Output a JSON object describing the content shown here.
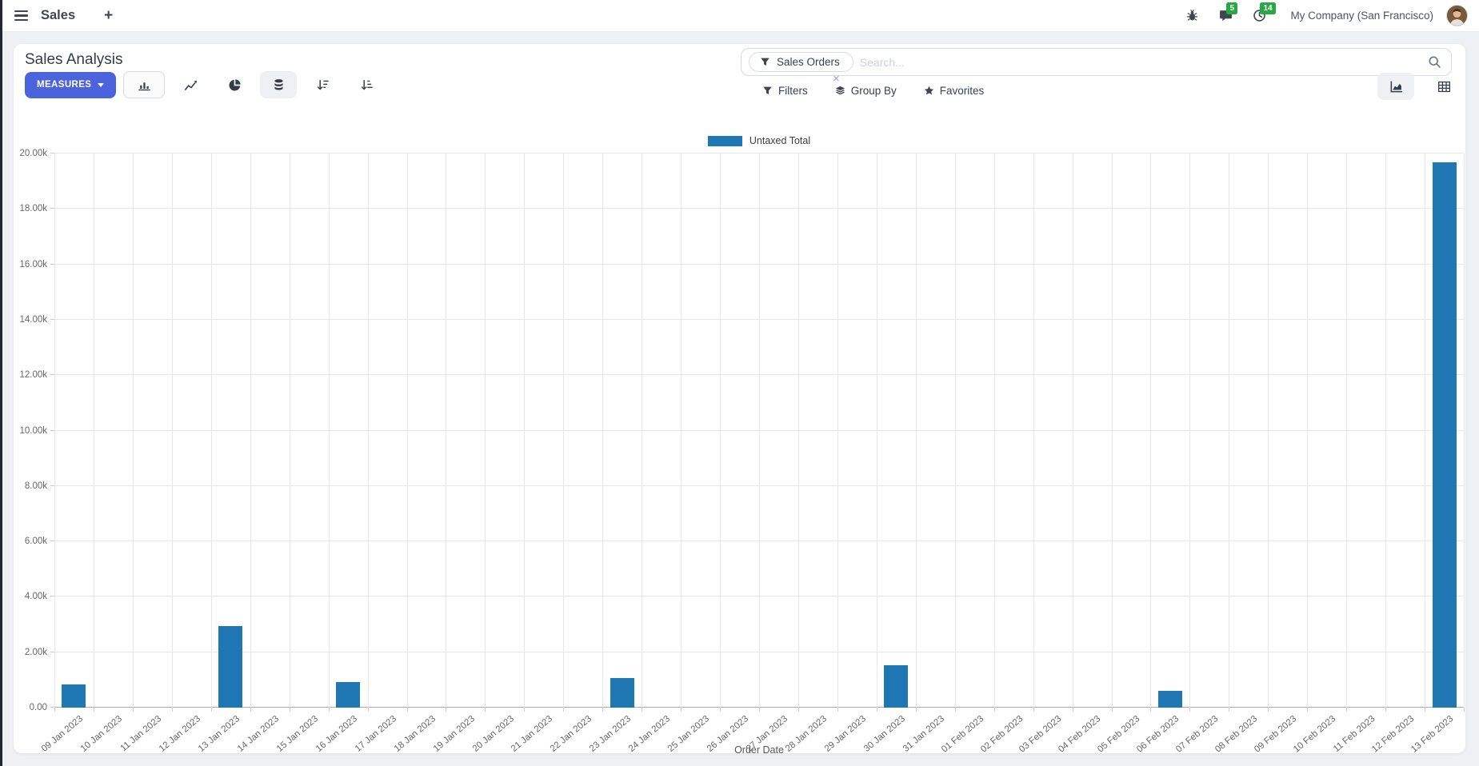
{
  "navbar": {
    "app_name": "Sales",
    "new_tab_symbol": "+",
    "company": "My Company (San Francisco)",
    "message_badge": "5",
    "activity_badge": "14",
    "badge_color": "#28a745"
  },
  "control_panel": {
    "title": "Sales Analysis",
    "measures_label": "MEASURES",
    "measures_color": "#4b63dc",
    "search": {
      "facet_label": "Sales Orders",
      "placeholder": "Search...",
      "remove_symbol": "×"
    },
    "filters_label": "Filters",
    "group_by_label": "Group By",
    "favorites_label": "Favorites"
  },
  "chart_data": {
    "type": "bar",
    "title": "",
    "xlabel": "Order Date",
    "ylabel": "",
    "legend": [
      "Untaxed Total"
    ],
    "legend_position": "top",
    "grid": true,
    "bar_color": "#1f77b4",
    "ylim": [
      0,
      20000
    ],
    "ytick_step": 2000,
    "ytick_labels": [
      "0.00",
      "2.00k",
      "4.00k",
      "6.00k",
      "8.00k",
      "10.00k",
      "12.00k",
      "14.00k",
      "16.00k",
      "18.00k",
      "20.00k"
    ],
    "categories": [
      "09 Jan 2023",
      "10 Jan 2023",
      "11 Jan 2023",
      "12 Jan 2023",
      "13 Jan 2023",
      "14 Jan 2023",
      "15 Jan 2023",
      "16 Jan 2023",
      "17 Jan 2023",
      "18 Jan 2023",
      "19 Jan 2023",
      "20 Jan 2023",
      "21 Jan 2023",
      "22 Jan 2023",
      "23 Jan 2023",
      "24 Jan 2023",
      "25 Jan 2023",
      "26 Jan 2023",
      "27 Jan 2023",
      "28 Jan 2023",
      "29 Jan 2023",
      "30 Jan 2023",
      "31 Jan 2023",
      "01 Feb 2023",
      "02 Feb 2023",
      "03 Feb 2023",
      "04 Feb 2023",
      "05 Feb 2023",
      "06 Feb 2023",
      "07 Feb 2023",
      "08 Feb 2023",
      "09 Feb 2023",
      "10 Feb 2023",
      "11 Feb 2023",
      "12 Feb 2023",
      "13 Feb 2023"
    ],
    "values": [
      840,
      0,
      0,
      0,
      2950,
      0,
      0,
      930,
      0,
      0,
      0,
      0,
      0,
      0,
      1070,
      0,
      0,
      0,
      0,
      0,
      0,
      1520,
      0,
      0,
      0,
      0,
      0,
      0,
      620,
      0,
      0,
      0,
      0,
      0,
      0,
      19680
    ]
  }
}
